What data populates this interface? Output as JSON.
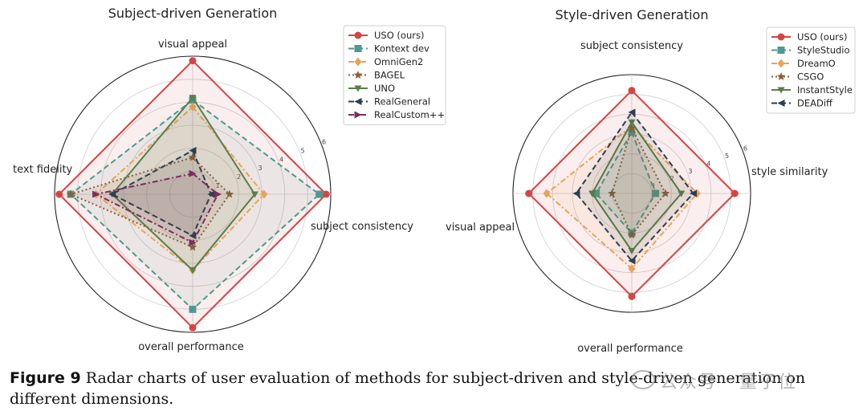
{
  "chart_data": [
    {
      "type": "radar",
      "title": "Subject-driven Generation",
      "axes": [
        "visual appeal",
        "subject consistency",
        "overall performance",
        "text fidelity"
      ],
      "rlim": [
        0,
        6
      ],
      "rticks": [
        "1",
        "2",
        "3",
        "4",
        "5",
        "6"
      ],
      "grid": true,
      "legend_position": "top-right",
      "series": [
        {
          "name": "USO (ours)",
          "values": [
            5.8,
            5.8,
            5.8,
            5.8
          ],
          "color": "#d64545",
          "marker": "circle",
          "dash": "solid"
        },
        {
          "name": "Kontext dev",
          "values": [
            4.1,
            5.5,
            5.0,
            5.3
          ],
          "color": "#4c9a91",
          "marker": "square",
          "dash": "dashed"
        },
        {
          "name": "OmniGen2",
          "values": [
            3.8,
            3.1,
            3.3,
            4.2
          ],
          "color": "#e8a35a",
          "marker": "diamond",
          "dash": "dashdot"
        },
        {
          "name": "BAGEL",
          "values": [
            1.6,
            1.6,
            2.3,
            5.3
          ],
          "color": "#8b5e3c",
          "marker": "star",
          "dash": "dotted"
        },
        {
          "name": "UNO",
          "values": [
            4.2,
            2.7,
            3.3,
            3.5
          ],
          "color": "#5a7d4a",
          "marker": "triangle-down",
          "dash": "solid"
        },
        {
          "name": "RealGeneral",
          "values": [
            1.9,
            0.8,
            1.8,
            3.5
          ],
          "color": "#2c3e50",
          "marker": "triangle-left",
          "dash": "dashed"
        },
        {
          "name": "RealCustom++",
          "values": [
            0.9,
            1.1,
            2.1,
            4.2
          ],
          "color": "#7b2d5e",
          "marker": "triangle-right",
          "dash": "dashdot"
        }
      ]
    },
    {
      "type": "radar",
      "title": "Style-driven Generation",
      "axes": [
        "subject consistency",
        "style similarity",
        "overall performance",
        "visual appeal"
      ],
      "rlim": [
        0,
        6
      ],
      "rticks": [
        "1",
        "2",
        "3",
        "4",
        "5",
        "6"
      ],
      "grid": true,
      "legend_position": "top-right",
      "series": [
        {
          "name": "USO (ours)",
          "values": [
            5.2,
            5.2,
            5.2,
            5.2
          ],
          "color": "#d64545",
          "marker": "circle",
          "dash": "solid"
        },
        {
          "name": "StyleStudio",
          "values": [
            3.1,
            1.2,
            2.0,
            1.8
          ],
          "color": "#4c9a91",
          "marker": "square",
          "dash": "dashed"
        },
        {
          "name": "DreamO",
          "values": [
            3.4,
            3.3,
            3.8,
            4.3
          ],
          "color": "#e8a35a",
          "marker": "diamond",
          "dash": "dashdot"
        },
        {
          "name": "CSGO",
          "values": [
            3.3,
            1.7,
            2.1,
            1.0
          ],
          "color": "#8b5e3c",
          "marker": "star",
          "dash": "dotted"
        },
        {
          "name": "InstantStyle",
          "values": [
            3.6,
            2.5,
            2.9,
            2.0
          ],
          "color": "#5a7d4a",
          "marker": "triangle-down",
          "dash": "solid"
        },
        {
          "name": "DEADiff",
          "values": [
            4.1,
            3.1,
            3.4,
            2.8
          ],
          "color": "#2c3e50",
          "marker": "triangle-left",
          "dash": "dashed"
        }
      ]
    }
  ],
  "caption": {
    "label": "Figure 9",
    "text": "Radar charts of user evaluation of methods for subject-driven and style-driven generation on different dimensions."
  },
  "watermark": {
    "text": "公众号 · 量子位"
  }
}
